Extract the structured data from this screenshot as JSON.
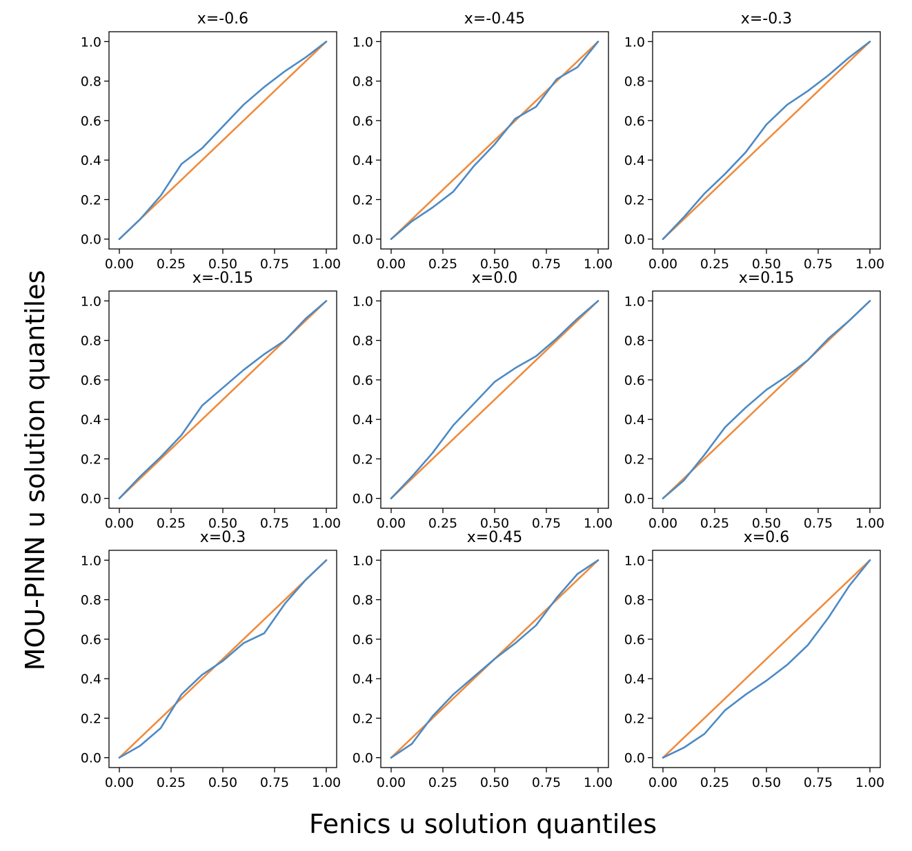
{
  "figure": {
    "xlabel": "Fenics u solution quantiles",
    "ylabel": "MOU-PINN u solution quantiles"
  },
  "chart_data": {
    "type": "line",
    "xlabel": "Fenics u solution quantiles",
    "ylabel": "MOU-PINN u solution quantiles",
    "grid": false,
    "legend": "none",
    "colors": {
      "model": "#4c8ac4",
      "reference": "#ef8b3c"
    },
    "xlim": [
      -0.05,
      1.05
    ],
    "ylim": [
      -0.05,
      1.05
    ],
    "xticks": [
      "0.00",
      "0.25",
      "0.50",
      "0.75",
      "1.00"
    ],
    "yticks": [
      "0.0",
      "0.2",
      "0.4",
      "0.6",
      "0.8",
      "1.0"
    ],
    "x": [
      0.0,
      0.1,
      0.2,
      0.3,
      0.4,
      0.5,
      0.6,
      0.7,
      0.8,
      0.9,
      1.0
    ],
    "panels": [
      {
        "title": "x=-0.6",
        "values": [
          0.0,
          0.1,
          0.22,
          0.38,
          0.46,
          0.57,
          0.68,
          0.77,
          0.85,
          0.92,
          1.0
        ]
      },
      {
        "title": "x=-0.45",
        "values": [
          0.0,
          0.09,
          0.16,
          0.24,
          0.37,
          0.48,
          0.61,
          0.67,
          0.81,
          0.87,
          1.0
        ]
      },
      {
        "title": "x=-0.3",
        "values": [
          0.0,
          0.11,
          0.23,
          0.33,
          0.44,
          0.58,
          0.68,
          0.75,
          0.83,
          0.92,
          1.0
        ]
      },
      {
        "title": "x=-0.15",
        "values": [
          0.0,
          0.11,
          0.21,
          0.32,
          0.47,
          0.56,
          0.65,
          0.73,
          0.8,
          0.91,
          1.0
        ]
      },
      {
        "title": "x=0.0",
        "values": [
          0.0,
          0.11,
          0.23,
          0.37,
          0.48,
          0.59,
          0.66,
          0.72,
          0.81,
          0.91,
          1.0
        ]
      },
      {
        "title": "x=0.15",
        "values": [
          0.0,
          0.09,
          0.22,
          0.36,
          0.46,
          0.55,
          0.62,
          0.7,
          0.81,
          0.9,
          1.0
        ]
      },
      {
        "title": "x=0.3",
        "values": [
          0.0,
          0.06,
          0.15,
          0.32,
          0.42,
          0.49,
          0.58,
          0.63,
          0.78,
          0.9,
          1.0
        ]
      },
      {
        "title": "x=0.45",
        "values": [
          0.0,
          0.07,
          0.21,
          0.32,
          0.41,
          0.5,
          0.58,
          0.67,
          0.81,
          0.93,
          1.0
        ]
      },
      {
        "title": "x=0.6",
        "values": [
          0.0,
          0.05,
          0.12,
          0.24,
          0.32,
          0.39,
          0.47,
          0.57,
          0.71,
          0.87,
          1.0
        ]
      }
    ],
    "reference_line": {
      "x": [
        0.0,
        1.0
      ],
      "y": [
        0.0,
        1.0
      ]
    }
  }
}
